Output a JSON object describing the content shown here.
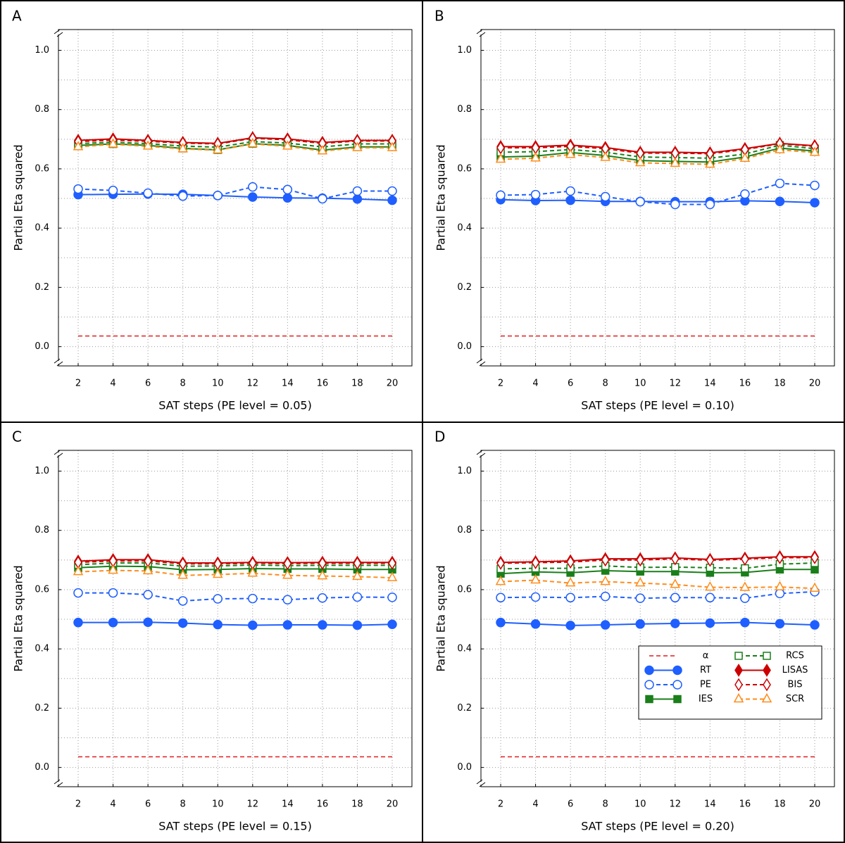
{
  "chart_data": [
    {
      "type": "line",
      "panel": "A",
      "xlabel": "SAT steps (PE level = 0.05)",
      "ylabel": "Partial Eta squared",
      "x": [
        2,
        4,
        6,
        8,
        10,
        12,
        14,
        16,
        18,
        20
      ],
      "xlim": [
        0.87,
        21.13
      ],
      "xticks": [
        2,
        4,
        6,
        8,
        10,
        12,
        14,
        16,
        18,
        20
      ],
      "ylim": [
        -0.065,
        1.07
      ],
      "yticks": [
        {
          "value": 0,
          "label": "0.0"
        },
        0.2,
        0.4,
        0.6,
        0.8,
        {
          "value": 1,
          "label": "1.0"
        }
      ],
      "yminorticks": [
        0.1,
        0.3,
        0.5,
        0.7,
        0.9
      ],
      "grid": true,
      "series": [
        {
          "name": "α",
          "color": "#e41a1c",
          "dash": true,
          "marker": "none",
          "filled": false,
          "values": [
            0.036,
            0.036,
            0.036,
            0.036,
            0.036,
            0.036,
            0.036,
            0.036,
            0.036,
            0.036
          ]
        },
        {
          "name": "RT",
          "color": "#1f5fff",
          "dash": false,
          "marker": "circle",
          "filled": true,
          "values": [
            0.513,
            0.514,
            0.515,
            0.514,
            0.51,
            0.505,
            0.502,
            0.501,
            0.498,
            0.494
          ]
        },
        {
          "name": "PE",
          "color": "#1f5fff",
          "dash": true,
          "marker": "circle",
          "filled": false,
          "values": [
            0.532,
            0.527,
            0.518,
            0.508,
            0.51,
            0.539,
            0.53,
            0.499,
            0.525,
            0.525
          ]
        },
        {
          "name": "IES",
          "color": "#1a7f1a",
          "dash": false,
          "marker": "square",
          "filled": true,
          "values": [
            0.679,
            0.684,
            0.679,
            0.669,
            0.664,
            0.685,
            0.679,
            0.663,
            0.674,
            0.674
          ]
        },
        {
          "name": "RCS",
          "color": "#1a7f1a",
          "dash": true,
          "marker": "square",
          "filled": false,
          "values": [
            0.685,
            0.69,
            0.685,
            0.677,
            0.673,
            0.692,
            0.687,
            0.674,
            0.684,
            0.684
          ]
        },
        {
          "name": "LISAS",
          "color": "#cc0000",
          "dash": false,
          "marker": "diamond",
          "filled": true,
          "values": [
            0.696,
            0.701,
            0.696,
            0.689,
            0.686,
            0.705,
            0.701,
            0.689,
            0.696,
            0.696
          ]
        },
        {
          "name": "BIS",
          "color": "#cc0000",
          "dash": true,
          "marker": "diamond",
          "filled": false,
          "values": [
            0.692,
            0.697,
            0.693,
            0.687,
            0.684,
            0.703,
            0.698,
            0.686,
            0.694,
            0.694
          ]
        },
        {
          "name": "SCR",
          "color": "#ff8c1a",
          "dash": true,
          "marker": "triangle",
          "filled": false,
          "values": [
            0.674,
            0.683,
            0.676,
            0.667,
            0.663,
            0.684,
            0.676,
            0.66,
            0.671,
            0.671
          ]
        }
      ]
    },
    {
      "type": "line",
      "panel": "B",
      "xlabel": "SAT steps (PE level = 0.10)",
      "ylabel": "Partial Eta squared",
      "x": [
        2,
        4,
        6,
        8,
        10,
        12,
        14,
        16,
        18,
        20
      ],
      "xlim": [
        0.87,
        21.13
      ],
      "xticks": [
        2,
        4,
        6,
        8,
        10,
        12,
        14,
        16,
        18,
        20
      ],
      "ylim": [
        -0.065,
        1.07
      ],
      "yticks": [
        {
          "value": 0,
          "label": "0.0"
        },
        0.2,
        0.4,
        0.6,
        0.8,
        {
          "value": 1,
          "label": "1.0"
        }
      ],
      "yminorticks": [
        0.1,
        0.3,
        0.5,
        0.7,
        0.9
      ],
      "grid": true,
      "series": [
        {
          "name": "α",
          "color": "#e41a1c",
          "dash": true,
          "marker": "none",
          "filled": false,
          "values": [
            0.036,
            0.036,
            0.036,
            0.036,
            0.036,
            0.036,
            0.036,
            0.036,
            0.036,
            0.036
          ]
        },
        {
          "name": "RT",
          "color": "#1f5fff",
          "dash": false,
          "marker": "circle",
          "filled": true,
          "values": [
            0.496,
            0.493,
            0.494,
            0.49,
            0.49,
            0.489,
            0.489,
            0.492,
            0.49,
            0.486
          ]
        },
        {
          "name": "PE",
          "color": "#1f5fff",
          "dash": true,
          "marker": "circle",
          "filled": false,
          "values": [
            0.511,
            0.513,
            0.525,
            0.506,
            0.489,
            0.48,
            0.48,
            0.515,
            0.551,
            0.544
          ]
        },
        {
          "name": "IES",
          "color": "#1a7f1a",
          "dash": false,
          "marker": "square",
          "filled": true,
          "values": [
            0.64,
            0.643,
            0.655,
            0.645,
            0.628,
            0.625,
            0.623,
            0.64,
            0.67,
            0.66
          ]
        },
        {
          "name": "RCS",
          "color": "#1a7f1a",
          "dash": true,
          "marker": "square",
          "filled": false,
          "values": [
            0.656,
            0.658,
            0.665,
            0.656,
            0.64,
            0.638,
            0.636,
            0.65,
            0.68,
            0.668
          ]
        },
        {
          "name": "LISAS",
          "color": "#cc0000",
          "dash": false,
          "marker": "diamond",
          "filled": true,
          "values": [
            0.675,
            0.675,
            0.68,
            0.672,
            0.656,
            0.656,
            0.654,
            0.668,
            0.686,
            0.678
          ]
        },
        {
          "name": "BIS",
          "color": "#cc0000",
          "dash": true,
          "marker": "diamond",
          "filled": false,
          "values": [
            0.671,
            0.671,
            0.676,
            0.668,
            0.653,
            0.653,
            0.651,
            0.665,
            0.685,
            0.676
          ]
        },
        {
          "name": "SCR",
          "color": "#ff8c1a",
          "dash": true,
          "marker": "triangle",
          "filled": false,
          "values": [
            0.632,
            0.636,
            0.648,
            0.638,
            0.62,
            0.618,
            0.615,
            0.635,
            0.664,
            0.655
          ]
        }
      ]
    },
    {
      "type": "line",
      "panel": "C",
      "xlabel": "SAT steps (PE level = 0.15)",
      "ylabel": "Partial Eta squared",
      "x": [
        2,
        4,
        6,
        8,
        10,
        12,
        14,
        16,
        18,
        20
      ],
      "xlim": [
        0.87,
        21.13
      ],
      "xticks": [
        2,
        4,
        6,
        8,
        10,
        12,
        14,
        16,
        18,
        20
      ],
      "ylim": [
        -0.065,
        1.07
      ],
      "yticks": [
        {
          "value": 0,
          "label": "0.0"
        },
        0.2,
        0.4,
        0.6,
        0.8,
        {
          "value": 1,
          "label": "1.0"
        }
      ],
      "yminorticks": [
        0.1,
        0.3,
        0.5,
        0.7,
        0.9
      ],
      "grid": true,
      "series": [
        {
          "name": "α",
          "color": "#e41a1c",
          "dash": true,
          "marker": "none",
          "filled": false,
          "values": [
            0.036,
            0.036,
            0.036,
            0.036,
            0.036,
            0.036,
            0.036,
            0.036,
            0.036,
            0.036
          ]
        },
        {
          "name": "RT",
          "color": "#1f5fff",
          "dash": false,
          "marker": "circle",
          "filled": true,
          "values": [
            0.489,
            0.489,
            0.49,
            0.487,
            0.482,
            0.48,
            0.481,
            0.481,
            0.48,
            0.483
          ]
        },
        {
          "name": "PE",
          "color": "#1f5fff",
          "dash": true,
          "marker": "circle",
          "filled": false,
          "values": [
            0.589,
            0.589,
            0.583,
            0.562,
            0.569,
            0.57,
            0.566,
            0.572,
            0.575,
            0.574
          ]
        },
        {
          "name": "IES",
          "color": "#1a7f1a",
          "dash": false,
          "marker": "square",
          "filled": true,
          "values": [
            0.674,
            0.679,
            0.678,
            0.667,
            0.668,
            0.671,
            0.67,
            0.67,
            0.668,
            0.668
          ]
        },
        {
          "name": "RCS",
          "color": "#1a7f1a",
          "dash": true,
          "marker": "square",
          "filled": false,
          "values": [
            0.684,
            0.69,
            0.69,
            0.679,
            0.68,
            0.683,
            0.681,
            0.682,
            0.682,
            0.682
          ]
        },
        {
          "name": "LISAS",
          "color": "#cc0000",
          "dash": false,
          "marker": "diamond",
          "filled": true,
          "values": [
            0.696,
            0.701,
            0.701,
            0.69,
            0.69,
            0.692,
            0.691,
            0.692,
            0.692,
            0.692
          ]
        },
        {
          "name": "BIS",
          "color": "#cc0000",
          "dash": true,
          "marker": "diamond",
          "filled": false,
          "values": [
            0.692,
            0.697,
            0.697,
            0.687,
            0.687,
            0.689,
            0.688,
            0.689,
            0.689,
            0.689
          ]
        },
        {
          "name": "SCR",
          "color": "#ff8c1a",
          "dash": true,
          "marker": "triangle",
          "filled": false,
          "values": [
            0.66,
            0.665,
            0.663,
            0.648,
            0.651,
            0.655,
            0.648,
            0.646,
            0.644,
            0.64
          ]
        }
      ]
    },
    {
      "type": "line",
      "panel": "D",
      "xlabel": "SAT steps (PE level = 0.20)",
      "ylabel": "Partial Eta squared",
      "x": [
        2,
        4,
        6,
        8,
        10,
        12,
        14,
        16,
        18,
        20
      ],
      "xlim": [
        0.87,
        21.13
      ],
      "xticks": [
        2,
        4,
        6,
        8,
        10,
        12,
        14,
        16,
        18,
        20
      ],
      "ylim": [
        -0.065,
        1.07
      ],
      "yticks": [
        {
          "value": 0,
          "label": "0.0"
        },
        0.2,
        0.4,
        0.6,
        0.8,
        {
          "value": 1,
          "label": "1.0"
        }
      ],
      "yminorticks": [
        0.1,
        0.3,
        0.5,
        0.7,
        0.9
      ],
      "grid": true,
      "legend": "lower right",
      "series": [
        {
          "name": "α",
          "color": "#e41a1c",
          "dash": true,
          "marker": "none",
          "filled": false,
          "values": [
            0.036,
            0.036,
            0.036,
            0.036,
            0.036,
            0.036,
            0.036,
            0.036,
            0.036,
            0.036
          ]
        },
        {
          "name": "RT",
          "color": "#1f5fff",
          "dash": false,
          "marker": "circle",
          "filled": true,
          "values": [
            0.489,
            0.484,
            0.479,
            0.481,
            0.484,
            0.486,
            0.487,
            0.489,
            0.485,
            0.481
          ]
        },
        {
          "name": "PE",
          "color": "#1f5fff",
          "dash": true,
          "marker": "circle",
          "filled": false,
          "values": [
            0.573,
            0.575,
            0.573,
            0.577,
            0.571,
            0.573,
            0.573,
            0.571,
            0.587,
            0.593
          ]
        },
        {
          "name": "IES",
          "color": "#1a7f1a",
          "dash": false,
          "marker": "square",
          "filled": true,
          "values": [
            0.654,
            0.66,
            0.657,
            0.664,
            0.661,
            0.661,
            0.657,
            0.658,
            0.668,
            0.668
          ]
        },
        {
          "name": "RCS",
          "color": "#1a7f1a",
          "dash": true,
          "marker": "square",
          "filled": false,
          "values": [
            0.67,
            0.672,
            0.672,
            0.68,
            0.675,
            0.676,
            0.674,
            0.672,
            0.686,
            0.69
          ]
        },
        {
          "name": "LISAS",
          "color": "#cc0000",
          "dash": false,
          "marker": "diamond",
          "filled": true,
          "values": [
            0.692,
            0.694,
            0.697,
            0.704,
            0.704,
            0.707,
            0.702,
            0.706,
            0.711,
            0.711
          ]
        },
        {
          "name": "BIS",
          "color": "#cc0000",
          "dash": true,
          "marker": "diamond",
          "filled": false,
          "values": [
            0.689,
            0.691,
            0.693,
            0.7,
            0.7,
            0.704,
            0.699,
            0.703,
            0.708,
            0.708
          ]
        },
        {
          "name": "SCR",
          "color": "#ff8c1a",
          "dash": true,
          "marker": "triangle",
          "filled": false,
          "values": [
            0.627,
            0.632,
            0.622,
            0.627,
            0.622,
            0.617,
            0.608,
            0.607,
            0.609,
            0.604
          ]
        }
      ]
    }
  ]
}
